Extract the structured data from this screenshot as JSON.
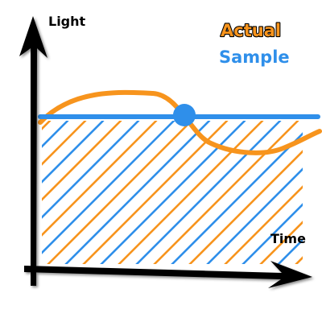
{
  "labels": {
    "y_axis": "Light",
    "x_axis": "Time",
    "actual": "Actual",
    "sample": "Sample"
  },
  "colors": {
    "actual": "#F7941D",
    "sample": "#2F8FEA",
    "axis": "#000000"
  }
}
